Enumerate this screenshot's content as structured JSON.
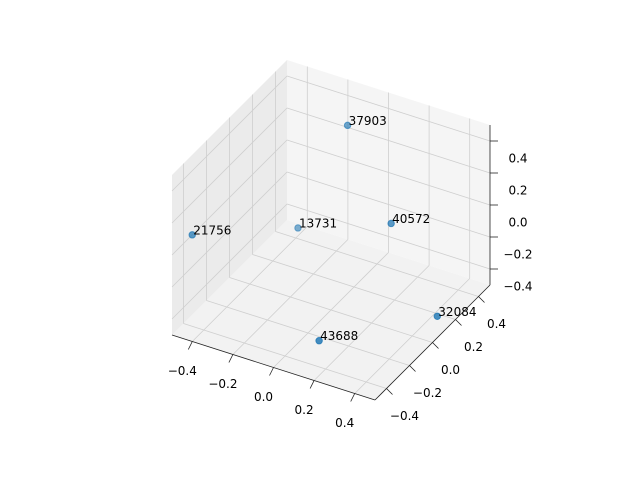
{
  "chart_data": {
    "type": "scatter3d",
    "x": [
      -0.44,
      -0.31,
      -0.06,
      0.2,
      0.45,
      0.1
    ],
    "y": [
      -0.43,
      0.26,
      0.25,
      0.17,
      0.13,
      -0.28
    ],
    "z": [
      0.1,
      -0.3,
      0.45,
      0,
      -0.45,
      -0.45
    ],
    "labels": [
      "21756",
      "13731",
      "37903",
      "40572",
      "32084",
      "43688"
    ],
    "color": "#1f77b4",
    "xlim": [
      -0.5,
      0.5
    ],
    "ylim": [
      -0.5,
      0.5
    ],
    "zlim": [
      -0.5,
      0.5
    ],
    "xticks": [
      {
        "value": -0.4,
        "label": "−0.4"
      },
      {
        "value": -0.2,
        "label": "−0.2"
      },
      {
        "value": 0,
        "label": "0.0"
      },
      0.2,
      0.4
    ],
    "yticks": [
      {
        "value": -0.4,
        "label": "−0.4"
      },
      {
        "value": -0.2,
        "label": "−0.2"
      },
      {
        "value": 0,
        "label": "0.0"
      },
      0.2,
      0.4
    ],
    "zticks": [
      {
        "value": -0.4,
        "label": "−0.4"
      },
      {
        "value": -0.2,
        "label": "−0.2"
      },
      {
        "value": 0,
        "label": "0.0"
      },
      0.2,
      0.4
    ],
    "grid": true
  }
}
